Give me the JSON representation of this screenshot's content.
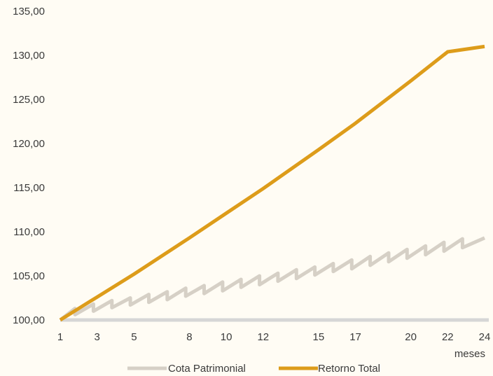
{
  "chart_data": {
    "type": "line",
    "xlabel": "meses",
    "ylabel": "",
    "title": "",
    "x_ticks": [
      1,
      3,
      5,
      8,
      10,
      12,
      15,
      17,
      20,
      22,
      24
    ],
    "y_ticks": [
      "100,00",
      "105,00",
      "110,00",
      "115,00",
      "120,00",
      "125,00",
      "130,00",
      "135,00"
    ],
    "xlim": [
      1,
      24
    ],
    "ylim": [
      100,
      135
    ],
    "grid": false,
    "legend": "bottom",
    "series": [
      {
        "name": "Cota Patrimonial",
        "color": "#D6D0C6",
        "x": [
          1,
          1.8,
          1.8,
          2.8,
          2.8,
          3.8,
          3.8,
          4.8,
          4.8,
          5.8,
          5.8,
          6.8,
          6.8,
          7.8,
          7.8,
          8.8,
          8.8,
          9.8,
          9.8,
          10.8,
          10.8,
          11.8,
          11.8,
          12.8,
          12.8,
          13.8,
          13.8,
          14.8,
          14.8,
          15.8,
          15.8,
          16.8,
          16.8,
          17.8,
          17.8,
          18.8,
          18.8,
          19.8,
          19.8,
          20.8,
          20.8,
          21.8,
          21.8,
          22.8,
          22.8,
          24
        ],
        "values": [
          100.0,
          101.3,
          100.6,
          101.8,
          101.0,
          102.2,
          101.4,
          102.5,
          101.7,
          102.9,
          102.0,
          103.2,
          102.3,
          103.6,
          102.7,
          103.9,
          103.0,
          104.3,
          103.3,
          104.6,
          103.7,
          105.0,
          104.0,
          105.3,
          104.4,
          105.7,
          104.7,
          106.0,
          105.1,
          106.4,
          105.5,
          106.8,
          105.8,
          107.2,
          106.2,
          107.6,
          106.6,
          108.0,
          107.0,
          108.4,
          107.4,
          108.8,
          107.8,
          109.2,
          108.2,
          109.3
        ]
      },
      {
        "name": "Retorno Total",
        "color": "#DD9C1A",
        "x": [
          1,
          3,
          5,
          8,
          10,
          12,
          15,
          17,
          20,
          22,
          24
        ],
        "values": [
          100.0,
          102.6,
          105.2,
          109.3,
          112.1,
          114.9,
          119.3,
          122.3,
          127.1,
          130.4,
          131.0
        ]
      }
    ],
    "baseline": {
      "color": "#D6D6D6",
      "value": 100
    }
  }
}
